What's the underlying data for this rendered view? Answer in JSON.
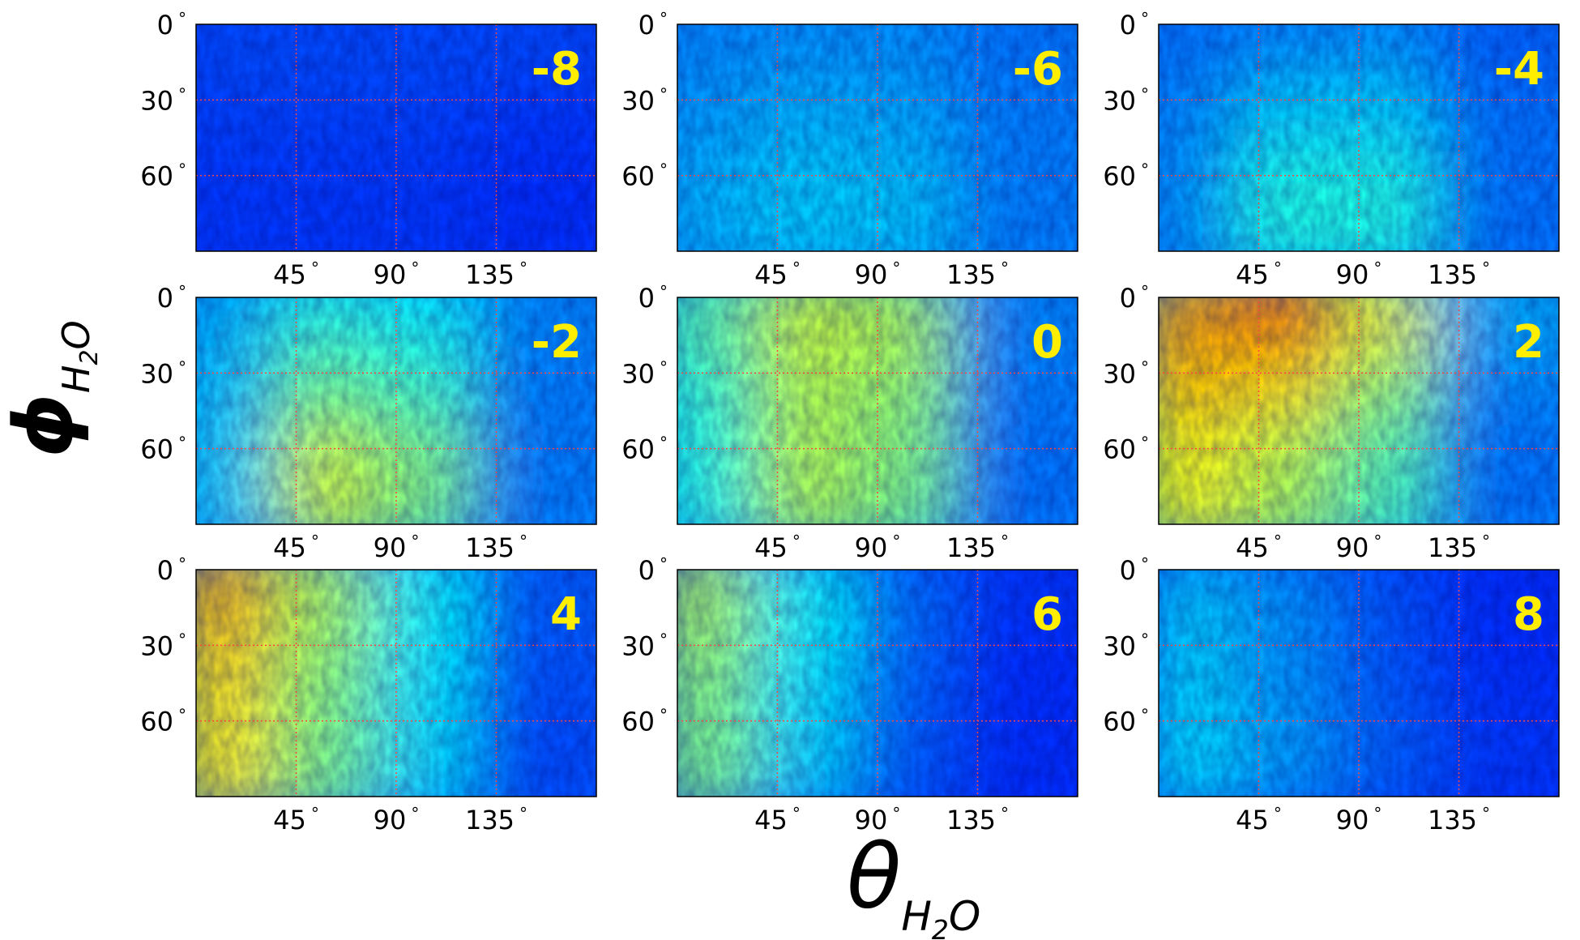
{
  "chart_data": {
    "type": "heatmap",
    "layout": "3x3 grid",
    "xlabel": "θ",
    "xlabel_subscript": "H2O",
    "ylabel": "ϕ",
    "ylabel_subscript": "H2O",
    "x_range": [
      0,
      180
    ],
    "y_range": [
      0,
      90
    ],
    "y_inverted": true,
    "x_ticks": [
      45,
      90,
      135
    ],
    "x_tick_labels": [
      "45",
      "90",
      "135"
    ],
    "y_ticks": [
      0,
      30,
      60
    ],
    "y_tick_labels": [
      "0",
      "30",
      "60"
    ],
    "degree_symbol": "°",
    "grid": "dotted",
    "grid_color": "#ff4444",
    "colormap": "jet",
    "label_color": "#ffee00",
    "panels": [
      {
        "label": "-8",
        "intensity": [
          [
            0.2,
            0.2,
            0.2,
            0.2
          ],
          [
            0.19,
            0.19,
            0.19,
            0.18
          ],
          [
            0.18,
            0.18,
            0.18,
            0.17
          ]
        ]
      },
      {
        "label": "-6",
        "intensity": [
          [
            0.26,
            0.27,
            0.27,
            0.24
          ],
          [
            0.28,
            0.3,
            0.29,
            0.25
          ],
          [
            0.3,
            0.33,
            0.32,
            0.25
          ]
        ]
      },
      {
        "label": "-4",
        "intensity": [
          [
            0.24,
            0.26,
            0.27,
            0.22
          ],
          [
            0.26,
            0.33,
            0.33,
            0.24
          ],
          [
            0.27,
            0.4,
            0.4,
            0.24
          ]
        ]
      },
      {
        "label": "-2",
        "intensity": [
          [
            0.3,
            0.4,
            0.37,
            0.26
          ],
          [
            0.32,
            0.48,
            0.43,
            0.25
          ],
          [
            0.33,
            0.58,
            0.5,
            0.25
          ]
        ]
      },
      {
        "label": "0",
        "intensity": [
          [
            0.46,
            0.58,
            0.55,
            0.26
          ],
          [
            0.42,
            0.55,
            0.52,
            0.25
          ],
          [
            0.4,
            0.55,
            0.5,
            0.24
          ]
        ]
      },
      {
        "label": "2",
        "intensity": [
          [
            0.72,
            0.78,
            0.62,
            0.3
          ],
          [
            0.68,
            0.65,
            0.52,
            0.26
          ],
          [
            0.62,
            0.55,
            0.45,
            0.24
          ]
        ]
      },
      {
        "label": "4",
        "intensity": [
          [
            0.7,
            0.55,
            0.38,
            0.22
          ],
          [
            0.66,
            0.52,
            0.36,
            0.21
          ],
          [
            0.64,
            0.5,
            0.35,
            0.2
          ]
        ]
      },
      {
        "label": "6",
        "intensity": [
          [
            0.55,
            0.38,
            0.24,
            0.18
          ],
          [
            0.52,
            0.36,
            0.23,
            0.17
          ],
          [
            0.5,
            0.34,
            0.22,
            0.17
          ]
        ]
      },
      {
        "label": "8",
        "intensity": [
          [
            0.32,
            0.27,
            0.21,
            0.17
          ],
          [
            0.33,
            0.27,
            0.21,
            0.17
          ],
          [
            0.34,
            0.28,
            0.22,
            0.18
          ]
        ]
      }
    ]
  }
}
